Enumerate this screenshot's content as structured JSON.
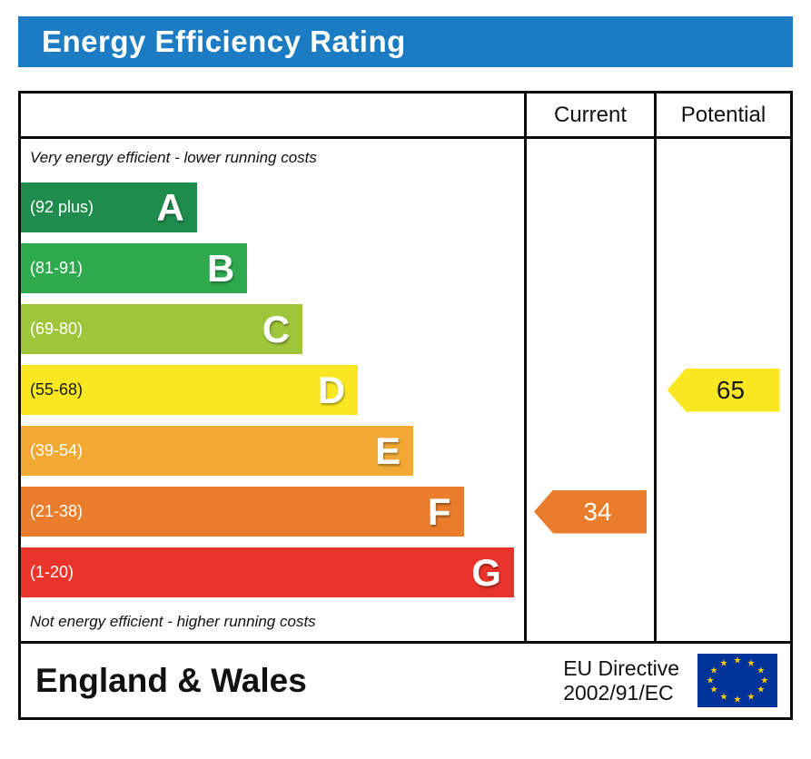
{
  "title": "Energy Efficiency Rating",
  "table": {
    "columns": {
      "current": "Current",
      "potential": "Potential"
    },
    "top_note": "Very energy efficient - lower running costs",
    "bottom_note": "Not energy efficient - higher running costs"
  },
  "chart_data": {
    "type": "bar",
    "title": "Energy Efficiency Rating",
    "bands": [
      {
        "letter": "A",
        "range": "(92 plus)",
        "color": "#1f8b4d",
        "width_pct": 35,
        "text_color": "#ffffff"
      },
      {
        "letter": "B",
        "range": "(81-91)",
        "color": "#2ea94e",
        "width_pct": 45,
        "text_color": "#ffffff"
      },
      {
        "letter": "C",
        "range": "(69-80)",
        "color": "#9fc63b",
        "width_pct": 56,
        "text_color": "#ffffff"
      },
      {
        "letter": "D",
        "range": "(55-68)",
        "color": "#f9e821",
        "width_pct": 67,
        "text_color": "#1a1a1a"
      },
      {
        "letter": "E",
        "range": "(39-54)",
        "color": "#f2a933",
        "width_pct": 78,
        "text_color": "#ffffff"
      },
      {
        "letter": "F",
        "range": "(21-38)",
        "color": "#e97d2c",
        "width_pct": 88,
        "text_color": "#ffffff"
      },
      {
        "letter": "G",
        "range": "(1-20)",
        "color": "#e8342b",
        "width_pct": 98,
        "text_color": "#ffffff"
      }
    ],
    "current": {
      "value": 34,
      "band": "F",
      "band_index": 5,
      "color": "#e97d2c",
      "text_color": "#ffffff"
    },
    "potential": {
      "value": 65,
      "band": "D",
      "band_index": 3,
      "color": "#f9e821",
      "text_color": "#1a1a1a"
    }
  },
  "footer": {
    "region": "England & Wales",
    "directive_line1": "EU Directive",
    "directive_line2": "2002/91/EC",
    "flag_icon": "eu-flag-icon"
  },
  "colors": {
    "title_bg": "#1b7cc4",
    "title_text": "#ffffff",
    "border": "#0b0b0b",
    "eu_flag_bg": "#003399",
    "eu_flag_star": "#ffcc00"
  }
}
